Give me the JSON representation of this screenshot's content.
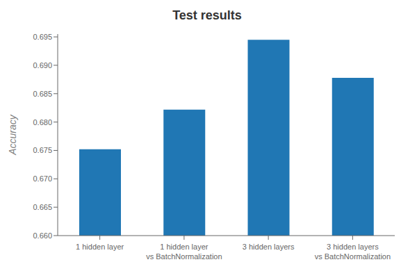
{
  "chart_data": {
    "type": "bar",
    "title": "Test results",
    "categories": [
      "1 hidden layer",
      "1 hidden layer\nvs BatchNormalization",
      "3 hidden layers",
      "3 hidden layers\nvs BatchNormalization"
    ],
    "values": [
      0.6752,
      0.6822,
      0.6945,
      0.6878
    ],
    "color": "#2077b4",
    "ylabel": "Accuracy",
    "ylim": [
      0.66,
      0.6955
    ],
    "yticks": [
      {
        "value": 0.66,
        "label": "0.660"
      },
      0.665,
      {
        "value": 0.67,
        "label": "0.670"
      },
      0.675,
      {
        "value": 0.68,
        "label": "0.680"
      },
      0.685,
      {
        "value": 0.69,
        "label": "0.690"
      },
      0.695
    ],
    "grid": false
  }
}
